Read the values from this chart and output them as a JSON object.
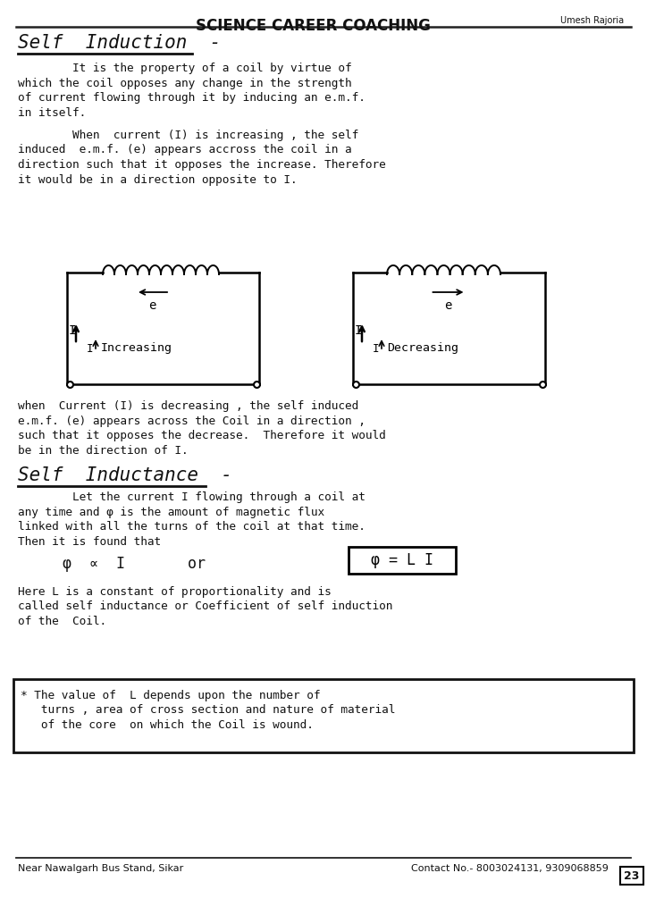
{
  "title": "SCIENCE CAREER COACHING",
  "title_right": "Umesh Rajoria",
  "bg_color": "#ffffff",
  "text_color": "#1a1a1a",
  "page_number": "23",
  "footer_left": "Near Nawalgarh Bus Stand, Sikar",
  "footer_right": "Contact No.- 8003024131, 9309068859",
  "section1_heading": "Self  Induction  -",
  "section1_para1_lines": [
    "        It is the property of a coil by virtue of",
    "which the coil opposes any change in the strength",
    "of current flowing through it by inducing an e.m.f.",
    "in itself."
  ],
  "section1_para2_lines": [
    "        When  current (I) is increasing , the self",
    "induced  e.m.f. (e) appears accross the coil in a",
    "direction such that it opposes the increase. Therefore",
    "it would be in a direction opposite to I."
  ],
  "section1_para3_lines": [
    "when  Current (I) is decreasing , the self induced",
    "e.m.f. (e) appears across the Coil in a direction ,",
    "such that it opposes the decrease.  Therefore it would",
    "be in the direction of I."
  ],
  "section2_heading": "Self  Inductance  -",
  "section2_para1_lines": [
    "        Let the current I flowing through a coil at",
    "any time and φ is the amount of magnetic flux",
    "linked with all the turns of the coil at that time.",
    "Then it is found that"
  ],
  "section2_formula": "     φ  ∝  I       or       φ = L I",
  "section2_para2_lines": [
    "Here L is a constant of proportionality and is",
    "called self inductance or Coefficient of self induction",
    "of the  Coil."
  ],
  "note_lines": [
    "* The value of  L depends upon the number of",
    "   turns , area of cross section and nature of material",
    "   of the core  on which the Coil is wound."
  ],
  "diagram_left_label": "Increasing",
  "diagram_right_label": "Decreasing"
}
